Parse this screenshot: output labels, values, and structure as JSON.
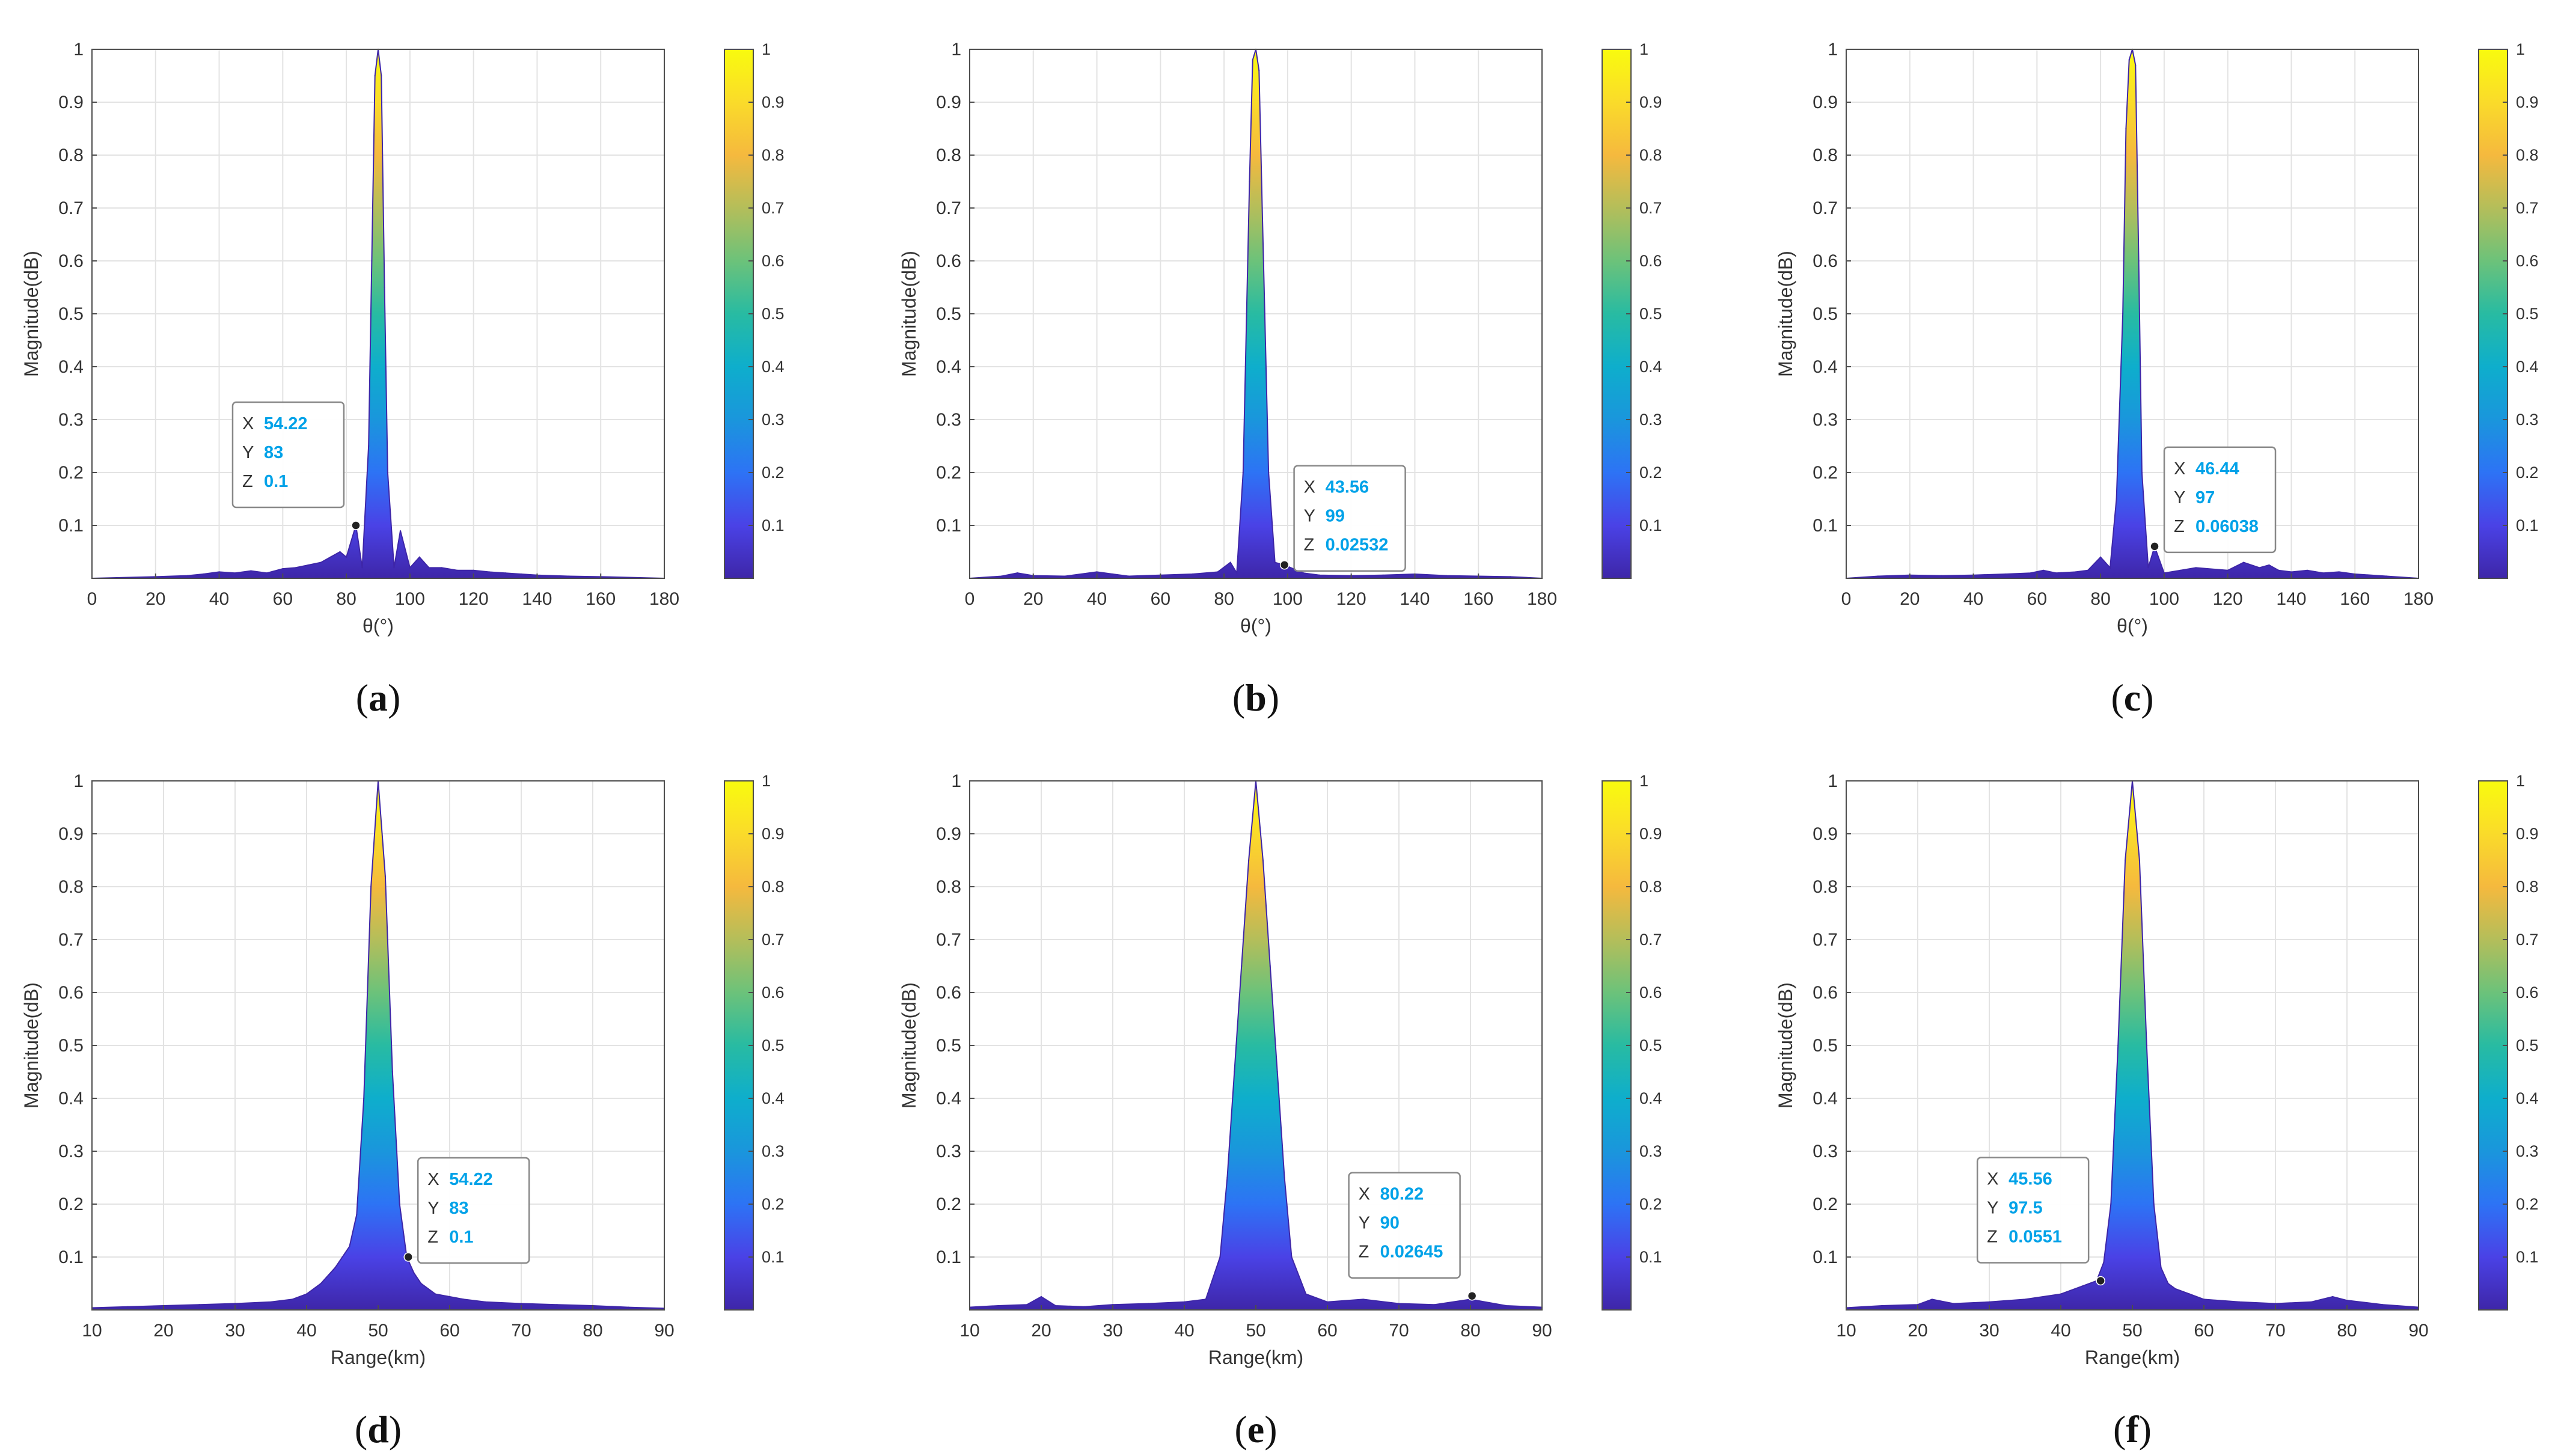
{
  "colors": {
    "datatip_value": "#00a2e8",
    "grid": "#e3e3e3",
    "axis": "#4d4d4d",
    "colormap": [
      "#3e26a8",
      "#4a42e6",
      "#2d73f5",
      "#1a96dc",
      "#0eaecc",
      "#28bba2",
      "#6cc27a",
      "#b4be5a",
      "#f5b93e",
      "#fadb2a",
      "#f9fb0e"
    ]
  },
  "chart_data": [
    {
      "id": "a",
      "type": "area",
      "caption": "a",
      "xlabel": "θ(°)",
      "ylabel": "Magnitude(dB)",
      "xlim": [
        0,
        180
      ],
      "ylim": [
        0,
        1
      ],
      "xticks": [
        "0",
        "20",
        "40",
        "60",
        "80",
        "100",
        "120",
        "140",
        "160",
        "180"
      ],
      "yticks": [
        "0.1",
        "0.2",
        "0.3",
        "0.4",
        "0.5",
        "0.6",
        "0.7",
        "0.8",
        "0.9",
        "1"
      ],
      "colorbar_ticks": [
        "0.1",
        "0.2",
        "0.3",
        "0.4",
        "0.5",
        "0.6",
        "0.7",
        "0.8",
        "0.9",
        "1"
      ],
      "x": [
        0,
        20,
        30,
        35,
        40,
        45,
        50,
        55,
        60,
        64,
        68,
        72,
        75,
        78,
        80,
        83,
        85,
        87,
        88,
        89,
        90,
        91,
        92,
        93,
        95,
        97,
        100,
        103,
        106,
        110,
        115,
        120,
        125,
        130,
        135,
        140,
        150,
        160,
        180
      ],
      "values": [
        0,
        0.003,
        0.005,
        0.008,
        0.012,
        0.01,
        0.014,
        0.01,
        0.018,
        0.02,
        0.025,
        0.03,
        0.04,
        0.05,
        0.04,
        0.1,
        0.02,
        0.25,
        0.6,
        0.95,
        1,
        0.95,
        0.55,
        0.2,
        0.02,
        0.09,
        0.02,
        0.04,
        0.02,
        0.02,
        0.015,
        0.015,
        0.012,
        0.01,
        0.008,
        0.006,
        0.004,
        0.003,
        0
      ],
      "datatip": {
        "x_label": "X",
        "x": "54.22",
        "y_label": "Y",
        "y": "83",
        "z_label": "Z",
        "z": "0.1",
        "point_x": 83,
        "point_z": 0.1,
        "placement": "upper-left"
      }
    },
    {
      "id": "b",
      "type": "area",
      "caption": "b",
      "xlabel": "θ(°)",
      "ylabel": "Magnitude(dB)",
      "xlim": [
        0,
        180
      ],
      "ylim": [
        0,
        1
      ],
      "xticks": [
        "0",
        "20",
        "40",
        "60",
        "80",
        "100",
        "120",
        "140",
        "160",
        "180"
      ],
      "yticks": [
        "0.1",
        "0.2",
        "0.3",
        "0.4",
        "0.5",
        "0.6",
        "0.7",
        "0.8",
        "0.9",
        "1"
      ],
      "colorbar_ticks": [
        "0.1",
        "0.2",
        "0.3",
        "0.4",
        "0.5",
        "0.6",
        "0.7",
        "0.8",
        "0.9",
        "1"
      ],
      "x": [
        0,
        10,
        15,
        20,
        30,
        40,
        45,
        50,
        60,
        70,
        78,
        82,
        84,
        86,
        88,
        89,
        90,
        91,
        92,
        94,
        96,
        99,
        105,
        110,
        120,
        130,
        140,
        150,
        160,
        170,
        180
      ],
      "values": [
        0,
        0.004,
        0.01,
        0.005,
        0.004,
        0.012,
        0.008,
        0.004,
        0.006,
        0.008,
        0.012,
        0.03,
        0.01,
        0.2,
        0.75,
        0.98,
        1,
        0.96,
        0.7,
        0.2,
        0.03,
        0.025,
        0.01,
        0.006,
        0.005,
        0.006,
        0.008,
        0.005,
        0.004,
        0.003,
        0
      ],
      "datatip": {
        "x_label": "X",
        "x": "43.56",
        "y_label": "Y",
        "y": "99",
        "z_label": "Z",
        "z": "0.02532",
        "point_x": 99,
        "point_z": 0.02532,
        "placement": "upper-right"
      }
    },
    {
      "id": "c",
      "type": "area",
      "caption": "c",
      "xlabel": "θ(°)",
      "ylabel": "Magnitude(dB)",
      "xlim": [
        0,
        180
      ],
      "ylim": [
        0,
        1
      ],
      "xticks": [
        "0",
        "20",
        "40",
        "60",
        "80",
        "100",
        "120",
        "140",
        "160",
        "180"
      ],
      "yticks": [
        "0.1",
        "0.2",
        "0.3",
        "0.4",
        "0.5",
        "0.6",
        "0.7",
        "0.8",
        "0.9",
        "1"
      ],
      "colorbar_ticks": [
        "0.1",
        "0.2",
        "0.3",
        "0.4",
        "0.5",
        "0.6",
        "0.7",
        "0.8",
        "0.9",
        "1"
      ],
      "x": [
        0,
        10,
        20,
        30,
        40,
        50,
        58,
        62,
        66,
        72,
        76,
        80,
        83,
        85,
        87,
        88,
        89,
        90,
        91,
        92,
        93,
        95,
        97,
        100,
        105,
        110,
        120,
        125,
        130,
        133,
        136,
        140,
        145,
        150,
        155,
        160,
        170,
        180
      ],
      "values": [
        0,
        0.004,
        0.006,
        0.005,
        0.006,
        0.008,
        0.01,
        0.015,
        0.01,
        0.012,
        0.015,
        0.04,
        0.02,
        0.15,
        0.5,
        0.85,
        0.98,
        1,
        0.97,
        0.6,
        0.2,
        0.02,
        0.06,
        0.01,
        0.015,
        0.02,
        0.015,
        0.03,
        0.02,
        0.025,
        0.015,
        0.012,
        0.015,
        0.01,
        0.012,
        0.008,
        0.004,
        0
      ],
      "datatip": {
        "x_label": "X",
        "x": "46.44",
        "y_label": "Y",
        "y": "97",
        "z_label": "Z",
        "z": "0.06038",
        "point_x": 97,
        "point_z": 0.06038,
        "placement": "upper-right"
      }
    },
    {
      "id": "d",
      "type": "area",
      "caption": "d",
      "xlabel": "Range(km)",
      "ylabel": "Magnitude(dB)",
      "xlim": [
        10,
        90
      ],
      "ylim": [
        0,
        1
      ],
      "xticks": [
        "10",
        "20",
        "30",
        "40",
        "50",
        "60",
        "70",
        "80",
        "90"
      ],
      "yticks": [
        "0.1",
        "0.2",
        "0.3",
        "0.4",
        "0.5",
        "0.6",
        "0.7",
        "0.8",
        "0.9",
        "1"
      ],
      "colorbar_ticks": [
        "0.1",
        "0.2",
        "0.3",
        "0.4",
        "0.5",
        "0.6",
        "0.7",
        "0.8",
        "0.9",
        "1"
      ],
      "x": [
        10,
        15,
        20,
        25,
        30,
        35,
        38,
        40,
        42,
        44,
        45,
        46,
        47,
        48,
        49,
        50,
        51,
        52,
        53,
        54,
        55,
        56,
        57,
        58,
        60,
        62,
        65,
        70,
        75,
        80,
        85,
        90
      ],
      "values": [
        0.004,
        0.006,
        0.008,
        0.01,
        0.012,
        0.015,
        0.02,
        0.03,
        0.05,
        0.08,
        0.1,
        0.12,
        0.18,
        0.4,
        0.8,
        1,
        0.82,
        0.45,
        0.2,
        0.1,
        0.07,
        0.05,
        0.04,
        0.03,
        0.025,
        0.02,
        0.015,
        0.012,
        0.01,
        0.008,
        0.005,
        0.003
      ],
      "datatip": {
        "x_label": "X",
        "x": "54.22",
        "y_label": "Y",
        "y": "83",
        "z_label": "Z",
        "z": "0.1",
        "point_x": 54.22,
        "point_z": 0.1,
        "placement": "upper-right"
      }
    },
    {
      "id": "e",
      "type": "area",
      "caption": "e",
      "xlabel": "Range(km)",
      "ylabel": "Magnitude(dB)",
      "xlim": [
        10,
        90
      ],
      "ylim": [
        0,
        1
      ],
      "xticks": [
        "10",
        "20",
        "30",
        "40",
        "50",
        "60",
        "70",
        "80",
        "90"
      ],
      "yticks": [
        "0.1",
        "0.2",
        "0.3",
        "0.4",
        "0.5",
        "0.6",
        "0.7",
        "0.8",
        "0.9",
        "1"
      ],
      "colorbar_ticks": [
        "0.1",
        "0.2",
        "0.3",
        "0.4",
        "0.5",
        "0.6",
        "0.7",
        "0.8",
        "0.9",
        "1"
      ],
      "x": [
        10,
        14,
        18,
        20,
        22,
        26,
        30,
        35,
        40,
        43,
        45,
        46,
        47,
        48,
        49,
        50,
        51,
        52,
        53,
        54,
        55,
        57,
        60,
        65,
        70,
        75,
        80,
        85,
        90
      ],
      "values": [
        0.005,
        0.008,
        0.01,
        0.025,
        0.008,
        0.006,
        0.01,
        0.012,
        0.015,
        0.02,
        0.1,
        0.25,
        0.45,
        0.65,
        0.85,
        1,
        0.85,
        0.65,
        0.45,
        0.25,
        0.1,
        0.03,
        0.015,
        0.02,
        0.012,
        0.01,
        0.02,
        0.008,
        0.005
      ],
      "datatip": {
        "x_label": "X",
        "x": "80.22",
        "y_label": "Y",
        "y": "90",
        "z_label": "Z",
        "z": "0.02645",
        "point_x": 80.22,
        "point_z": 0.02645,
        "placement": "upper-left"
      }
    },
    {
      "id": "f",
      "type": "area",
      "caption": "f",
      "xlabel": "Range(km)",
      "ylabel": "Magnitude(dB)",
      "xlim": [
        10,
        90
      ],
      "ylim": [
        0,
        1
      ],
      "xticks": [
        "10",
        "20",
        "30",
        "40",
        "50",
        "60",
        "70",
        "80",
        "90"
      ],
      "yticks": [
        "0.1",
        "0.2",
        "0.3",
        "0.4",
        "0.5",
        "0.6",
        "0.7",
        "0.8",
        "0.9",
        "1"
      ],
      "colorbar_ticks": [
        "0.1",
        "0.2",
        "0.3",
        "0.4",
        "0.5",
        "0.6",
        "0.7",
        "0.8",
        "0.9",
        "1"
      ],
      "x": [
        10,
        15,
        20,
        22,
        25,
        30,
        35,
        40,
        43,
        45,
        46,
        47,
        48,
        49,
        50,
        51,
        52,
        53,
        54,
        55,
        56,
        58,
        60,
        65,
        70,
        75,
        78,
        80,
        85,
        90
      ],
      "values": [
        0.004,
        0.008,
        0.01,
        0.02,
        0.012,
        0.015,
        0.02,
        0.03,
        0.045,
        0.055,
        0.09,
        0.2,
        0.5,
        0.85,
        1,
        0.85,
        0.5,
        0.2,
        0.08,
        0.05,
        0.04,
        0.03,
        0.02,
        0.015,
        0.012,
        0.015,
        0.025,
        0.018,
        0.01,
        0.005
      ],
      "datatip": {
        "x_label": "X",
        "x": "45.56",
        "y_label": "Y",
        "y": "97.5",
        "z_label": "Z",
        "z": "0.0551",
        "point_x": 45.56,
        "point_z": 0.0551,
        "placement": "upper-left"
      }
    }
  ]
}
